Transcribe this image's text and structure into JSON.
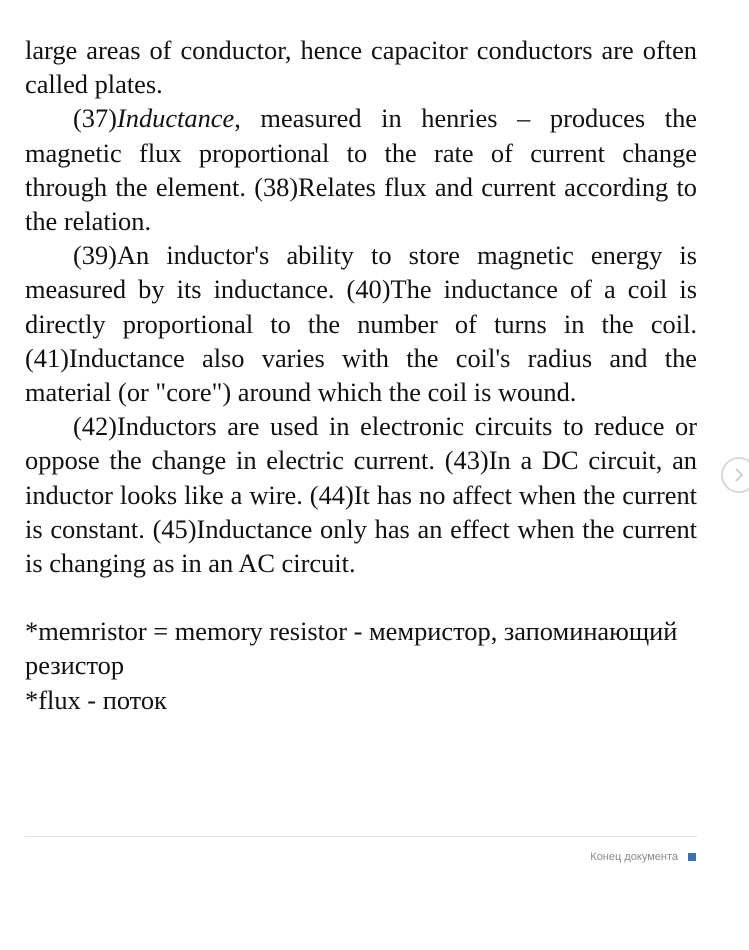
{
  "document": {
    "paragraph_0": "large areas of conductor, hence capacitor conductors are often called plates.",
    "paragraph_37": {
      "number": "(37)",
      "term": "Inductance",
      "rest": ", measured in henries – produces the magnetic flux proportional to the rate of current change through the element. (38)Relates flux and current according to the relation."
    },
    "paragraph_39": "(39)An inductor's ability to store magnetic energy is measured by its inductance. (40)The inductance of a coil is directly proportional to the number of turns in the coil. (41)Inductance also varies with the coil's radius and the material (or \"core\") around which the coil is wound.",
    "paragraph_42": "(42)Inductors are used in electronic circuits to reduce or oppose the change in electric current.  (43)In a DC circuit, an inductor looks like a wire. (44)It has no affect when the current is constant. (45)Inductance only has an effect when the current is changing as in an AC circuit.",
    "notes": [
      "*memristor = memory resistor - мемристор, запоминающий резистор",
      "*flux - поток"
    ]
  },
  "footer": {
    "end_label": "Конец документа",
    "marker_color": "#3e6fb0"
  },
  "navigation": {
    "next_icon": "chevron-right-icon"
  }
}
